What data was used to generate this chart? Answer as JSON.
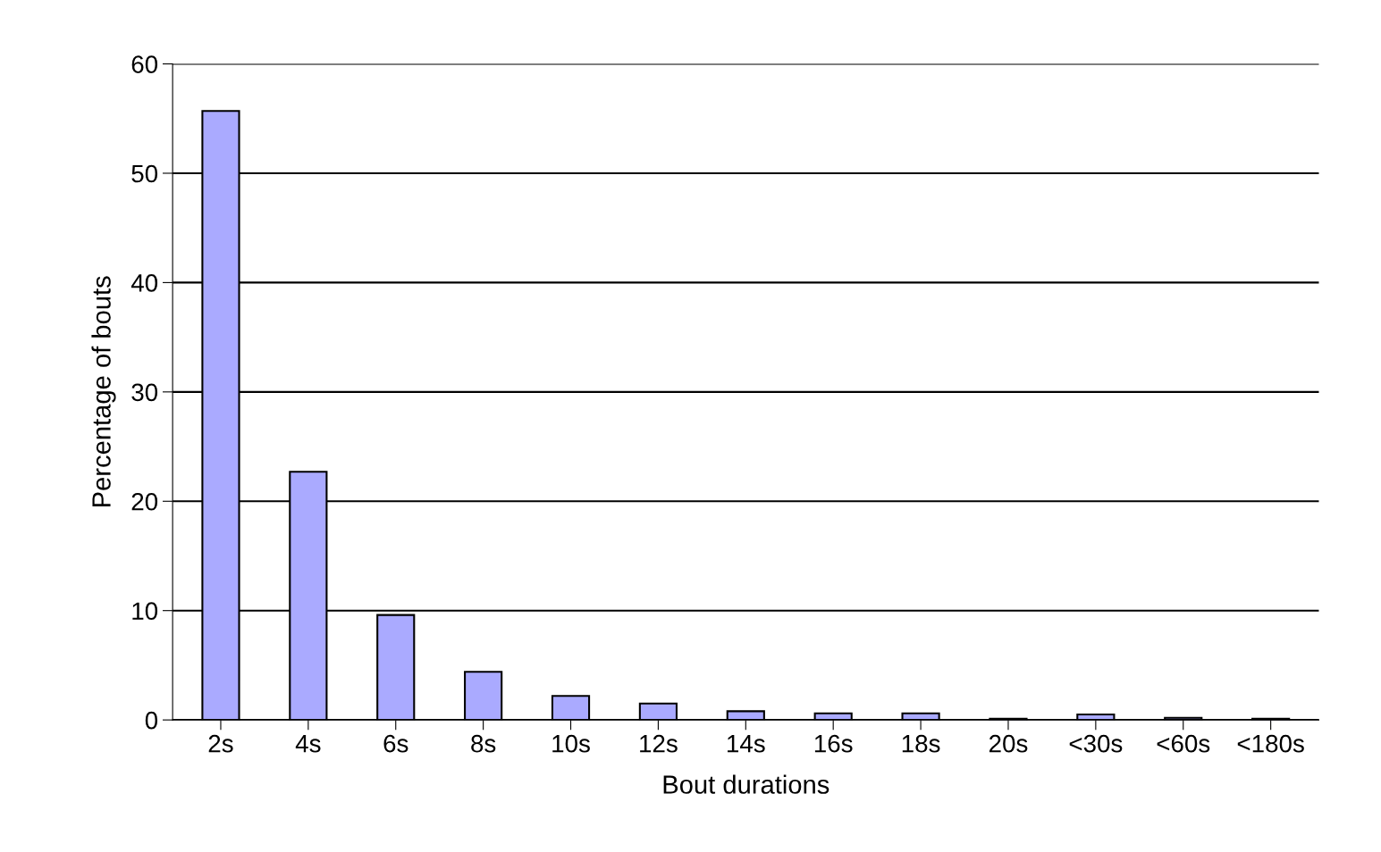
{
  "chart_data": {
    "type": "bar",
    "xlabel": "Bout durations",
    "ylabel": "Percentage of bouts",
    "categories": [
      "2s",
      "4s",
      "6s",
      "8s",
      "10s",
      "12s",
      "14s",
      "16s",
      "18s",
      "20s",
      "<30s",
      "<60s",
      "<180s"
    ],
    "values": [
      55.7,
      22.7,
      9.6,
      4.4,
      2.2,
      1.5,
      0.8,
      0.6,
      0.6,
      0.1,
      0.5,
      0.2,
      0.1
    ],
    "color": "#aaaaff",
    "ylim": [
      0,
      60
    ],
    "yticks": [
      0,
      10,
      20,
      30,
      40,
      50,
      60
    ],
    "grid": "y"
  }
}
